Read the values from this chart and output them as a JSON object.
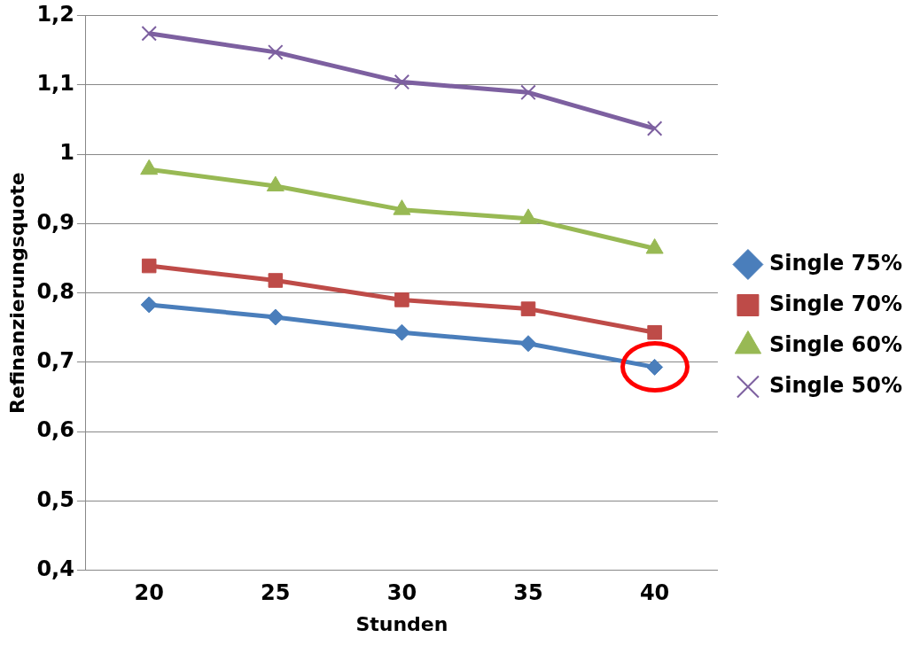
{
  "chart_data": {
    "type": "line",
    "xlabel": "Stunden",
    "ylabel": "Refinanzierungsquote",
    "categories": [
      "20",
      "25",
      "30",
      "35",
      "40"
    ],
    "series": [
      {
        "name": "Single 75%",
        "color": "#4a7ebb",
        "marker": "diamond",
        "values": [
          0.783,
          0.765,
          0.743,
          0.727,
          0.693
        ]
      },
      {
        "name": "Single 70%",
        "color": "#be4b48",
        "marker": "square",
        "values": [
          0.839,
          0.818,
          0.79,
          0.777,
          0.743
        ]
      },
      {
        "name": "Single 60%",
        "color": "#98b954",
        "marker": "triangle",
        "values": [
          0.978,
          0.954,
          0.92,
          0.907,
          0.864
        ]
      },
      {
        "name": "Single 50%",
        "color": "#7d60a0",
        "marker": "cross",
        "values": [
          1.174,
          1.147,
          1.104,
          1.089,
          1.037
        ]
      }
    ],
    "ylim": [
      0.4,
      1.2
    ],
    "yticks": [
      {
        "value": 0.4,
        "label": "0,4"
      },
      {
        "value": 0.5,
        "label": "0,5"
      },
      {
        "value": 0.6,
        "label": "0,6"
      },
      {
        "value": 0.7,
        "label": "0,7"
      },
      {
        "value": 0.8,
        "label": "0,8"
      },
      {
        "value": 0.9,
        "label": "0,9"
      },
      {
        "value": 1,
        "label": "1"
      },
      {
        "value": 1.1,
        "label": "1,1"
      },
      {
        "value": 1.2,
        "label": "1,2"
      }
    ],
    "grid": "y",
    "legend": "right"
  }
}
